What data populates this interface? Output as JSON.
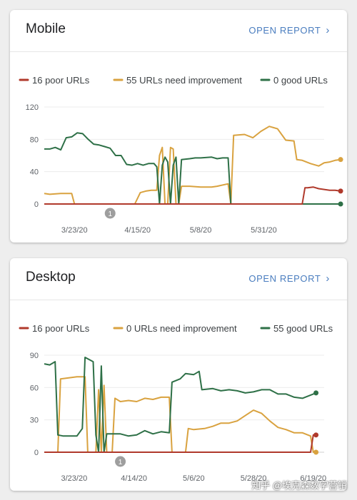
{
  "cards": [
    {
      "title": "Mobile",
      "open_report_label": "OPEN REPORT",
      "chart_data": {
        "type": "line",
        "ylim": [
          0,
          120
        ],
        "yticks": [
          0,
          40,
          80,
          120
        ],
        "x_dates": [
          "2020-03-23",
          "2020-04-15",
          "2020-05-08",
          "2020-05-31"
        ],
        "xtick_labels": [
          "3/23/20",
          "4/15/20",
          "5/8/20",
          "5/31/20"
        ],
        "x_range": [
          "2020-03-12",
          "2020-06-22"
        ],
        "annotation": {
          "label": "1",
          "date": "2020-04-05"
        },
        "colors": {
          "poor": "#b0392b",
          "needs": "#d9a23f",
          "good": "#2e7047"
        },
        "legend": [
          "16 poor URLs",
          "55 URLs need improvement",
          "0 good URLs"
        ],
        "series": [
          {
            "name": "16 poor URLs",
            "color_key": "poor",
            "points": [
              [
                "2020-03-12",
                0
              ],
              [
                "2020-06-14",
                0
              ],
              [
                "2020-06-15",
                20
              ],
              [
                "2020-06-16",
                20
              ],
              [
                "2020-06-18",
                21
              ],
              [
                "2020-06-20",
                19
              ],
              [
                "2020-06-22",
                18
              ],
              [
                "2020-06-24",
                17
              ],
              [
                "2020-06-26",
                17
              ],
              [
                "2020-06-28",
                16
              ]
            ]
          },
          {
            "name": "55 URLs need improvement",
            "color_key": "needs",
            "points": [
              [
                "2020-03-12",
                13
              ],
              [
                "2020-03-14",
                12
              ],
              [
                "2020-03-18",
                13
              ],
              [
                "2020-03-22",
                13
              ],
              [
                "2020-03-23",
                0
              ],
              [
                "2020-04-14",
                0
              ],
              [
                "2020-04-16",
                14
              ],
              [
                "2020-04-18",
                16
              ],
              [
                "2020-04-20",
                17
              ],
              [
                "2020-04-22",
                17
              ],
              [
                "2020-04-23",
                60
              ],
              [
                "2020-04-24",
                70
              ],
              [
                "2020-04-25",
                0
              ],
              [
                "2020-04-26",
                0
              ],
              [
                "2020-04-27",
                70
              ],
              [
                "2020-04-28",
                68
              ],
              [
                "2020-04-29",
                0
              ],
              [
                "2020-04-30",
                0
              ],
              [
                "2020-05-01",
                22
              ],
              [
                "2020-05-04",
                22
              ],
              [
                "2020-05-08",
                21
              ],
              [
                "2020-05-12",
                21
              ],
              [
                "2020-05-14",
                22
              ],
              [
                "2020-05-18",
                25
              ],
              [
                "2020-05-19",
                0
              ],
              [
                "2020-05-20",
                85
              ],
              [
                "2020-05-24",
                86
              ],
              [
                "2020-05-27",
                82
              ],
              [
                "2020-05-30",
                90
              ],
              [
                "2020-06-02",
                96
              ],
              [
                "2020-06-05",
                93
              ],
              [
                "2020-06-08",
                79
              ],
              [
                "2020-06-11",
                78
              ],
              [
                "2020-06-12",
                55
              ],
              [
                "2020-06-14",
                54
              ],
              [
                "2020-06-17",
                50
              ],
              [
                "2020-06-20",
                47
              ],
              [
                "2020-06-22",
                51
              ],
              [
                "2020-06-24",
                52
              ],
              [
                "2020-06-26",
                54
              ],
              [
                "2020-06-28",
                55
              ]
            ]
          },
          {
            "name": "0 good URLs",
            "color_key": "good",
            "points": [
              [
                "2020-03-12",
                68
              ],
              [
                "2020-03-14",
                68
              ],
              [
                "2020-03-16",
                70
              ],
              [
                "2020-03-18",
                67
              ],
              [
                "2020-03-20",
                82
              ],
              [
                "2020-03-22",
                83
              ],
              [
                "2020-03-24",
                88
              ],
              [
                "2020-03-26",
                87
              ],
              [
                "2020-03-28",
                80
              ],
              [
                "2020-03-30",
                74
              ],
              [
                "2020-04-01",
                73
              ],
              [
                "2020-04-03",
                71
              ],
              [
                "2020-04-05",
                69
              ],
              [
                "2020-04-07",
                60
              ],
              [
                "2020-04-09",
                60
              ],
              [
                "2020-04-11",
                49
              ],
              [
                "2020-04-13",
                48
              ],
              [
                "2020-04-15",
                50
              ],
              [
                "2020-04-17",
                48
              ],
              [
                "2020-04-19",
                50
              ],
              [
                "2020-04-21",
                50
              ],
              [
                "2020-04-22",
                46
              ],
              [
                "2020-04-23",
                0
              ],
              [
                "2020-04-24",
                48
              ],
              [
                "2020-04-25",
                58
              ],
              [
                "2020-04-26",
                52
              ],
              [
                "2020-04-27",
                0
              ],
              [
                "2020-04-28",
                48
              ],
              [
                "2020-04-29",
                58
              ],
              [
                "2020-04-30",
                0
              ],
              [
                "2020-05-01",
                55
              ],
              [
                "2020-05-04",
                56
              ],
              [
                "2020-05-06",
                57
              ],
              [
                "2020-05-08",
                57
              ],
              [
                "2020-05-12",
                58
              ],
              [
                "2020-05-14",
                56
              ],
              [
                "2020-05-16",
                57
              ],
              [
                "2020-05-18",
                57
              ],
              [
                "2020-05-19",
                0
              ],
              [
                "2020-06-28",
                0
              ]
            ]
          }
        ]
      }
    },
    {
      "title": "Desktop",
      "open_report_label": "OPEN REPORT",
      "chart_data": {
        "type": "line",
        "ylim": [
          0,
          90
        ],
        "yticks": [
          0,
          30,
          60,
          90
        ],
        "x_dates": [
          "2020-03-23",
          "2020-04-14",
          "2020-05-06",
          "2020-05-28",
          "2020-06-19"
        ],
        "xtick_labels": [
          "3/23/20",
          "4/14/20",
          "5/6/20",
          "5/28/20",
          "6/19/20"
        ],
        "x_range": [
          "2020-03-12",
          "2020-06-23"
        ],
        "annotation": {
          "label": "1",
          "date": "2020-04-09"
        },
        "colors": {
          "poor": "#b0392b",
          "needs": "#d9a23f",
          "good": "#2e7047"
        },
        "legend": [
          "16 poor URLs",
          "0 URLs need improvement",
          "55 good URLs"
        ],
        "series": [
          {
            "name": "16 poor URLs",
            "color_key": "poor",
            "points": [
              [
                "2020-03-12",
                0
              ],
              [
                "2020-06-18",
                0
              ],
              [
                "2020-06-19",
                16
              ],
              [
                "2020-06-20",
                16
              ]
            ]
          },
          {
            "name": "0 URLs need improvement",
            "color_key": "needs",
            "points": [
              [
                "2020-03-12",
                0
              ],
              [
                "2020-03-17",
                0
              ],
              [
                "2020-03-18",
                68
              ],
              [
                "2020-03-24",
                70
              ],
              [
                "2020-03-27",
                70
              ],
              [
                "2020-03-28",
                0
              ],
              [
                "2020-03-31",
                0
              ],
              [
                "2020-04-01",
                58
              ],
              [
                "2020-04-02",
                0
              ],
              [
                "2020-04-03",
                62
              ],
              [
                "2020-04-04",
                0
              ],
              [
                "2020-04-06",
                0
              ],
              [
                "2020-04-07",
                50
              ],
              [
                "2020-04-09",
                47
              ],
              [
                "2020-04-12",
                48
              ],
              [
                "2020-04-15",
                47
              ],
              [
                "2020-04-18",
                50
              ],
              [
                "2020-04-21",
                49
              ],
              [
                "2020-04-24",
                51
              ],
              [
                "2020-04-27",
                51
              ],
              [
                "2020-04-28",
                0
              ],
              [
                "2020-05-03",
                0
              ],
              [
                "2020-05-04",
                22
              ],
              [
                "2020-05-06",
                21
              ],
              [
                "2020-05-10",
                22
              ],
              [
                "2020-05-13",
                24
              ],
              [
                "2020-05-16",
                27
              ],
              [
                "2020-05-19",
                27
              ],
              [
                "2020-05-22",
                29
              ],
              [
                "2020-05-25",
                34
              ],
              [
                "2020-05-28",
                39
              ],
              [
                "2020-05-31",
                36
              ],
              [
                "2020-06-03",
                29
              ],
              [
                "2020-06-06",
                23
              ],
              [
                "2020-06-09",
                21
              ],
              [
                "2020-06-12",
                18
              ],
              [
                "2020-06-15",
                18
              ],
              [
                "2020-06-18",
                15
              ],
              [
                "2020-06-19",
                0
              ],
              [
                "2020-06-20",
                0
              ]
            ]
          },
          {
            "name": "55 good URLs",
            "color_key": "good",
            "points": [
              [
                "2020-03-12",
                82
              ],
              [
                "2020-03-14",
                81
              ],
              [
                "2020-03-16",
                84
              ],
              [
                "2020-03-17",
                16
              ],
              [
                "2020-03-19",
                15
              ],
              [
                "2020-03-22",
                15
              ],
              [
                "2020-03-24",
                15
              ],
              [
                "2020-03-26",
                22
              ],
              [
                "2020-03-27",
                88
              ],
              [
                "2020-03-30",
                84
              ],
              [
                "2020-03-31",
                16
              ],
              [
                "2020-04-01",
                0
              ],
              [
                "2020-04-02",
                80
              ],
              [
                "2020-04-03",
                0
              ],
              [
                "2020-04-04",
                17
              ],
              [
                "2020-04-06",
                17
              ],
              [
                "2020-04-09",
                17
              ],
              [
                "2020-04-12",
                15
              ],
              [
                "2020-04-15",
                16
              ],
              [
                "2020-04-18",
                20
              ],
              [
                "2020-04-21",
                17
              ],
              [
                "2020-04-24",
                19
              ],
              [
                "2020-04-27",
                18
              ],
              [
                "2020-04-28",
                65
              ],
              [
                "2020-05-01",
                68
              ],
              [
                "2020-05-03",
                73
              ],
              [
                "2020-05-06",
                72
              ],
              [
                "2020-05-08",
                75
              ],
              [
                "2020-05-09",
                58
              ],
              [
                "2020-05-13",
                59
              ],
              [
                "2020-05-16",
                57
              ],
              [
                "2020-05-19",
                58
              ],
              [
                "2020-05-22",
                57
              ],
              [
                "2020-05-25",
                55
              ],
              [
                "2020-05-28",
                56
              ],
              [
                "2020-05-31",
                58
              ],
              [
                "2020-06-03",
                58
              ],
              [
                "2020-06-06",
                54
              ],
              [
                "2020-06-09",
                54
              ],
              [
                "2020-06-12",
                51
              ],
              [
                "2020-06-15",
                50
              ],
              [
                "2020-06-18",
                53
              ],
              [
                "2020-06-20",
                55
              ]
            ]
          }
        ]
      }
    }
  ],
  "watermark": "知乎 @埃克森数字营销"
}
